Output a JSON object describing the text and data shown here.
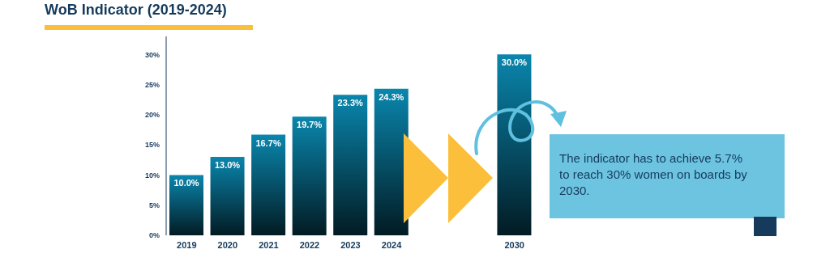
{
  "chart_data": {
    "type": "bar",
    "title": "WoB Indicator (2019-2024)",
    "categories": [
      "2019",
      "2020",
      "2021",
      "2022",
      "2023",
      "2024",
      null,
      null,
      "2030"
    ],
    "values": [
      10,
      13,
      16.7,
      19.7,
      23.3,
      24.3,
      null,
      null,
      30
    ],
    "value_labels": [
      "10.0%",
      "13.0%",
      "16.7%",
      "19.7%",
      "23.3%",
      "24.3%",
      null,
      null,
      "30.0%"
    ],
    "color": "#0a86ad",
    "ylim": [
      0,
      33
    ],
    "yticks": [
      {
        "value": 0,
        "label": "0%"
      },
      {
        "value": 5,
        "label": "5%"
      },
      {
        "value": 10,
        "label": "10%"
      },
      {
        "value": 15,
        "label": "15%"
      },
      {
        "value": 20,
        "label": "20%"
      },
      {
        "value": 25,
        "label": "25%"
      },
      {
        "value": 30,
        "label": "30%"
      }
    ],
    "grid": false,
    "legend": false,
    "annotations": [
      "The indicator has to achieve 5.7% to reach 30% women on boards by 2030."
    ]
  }
}
